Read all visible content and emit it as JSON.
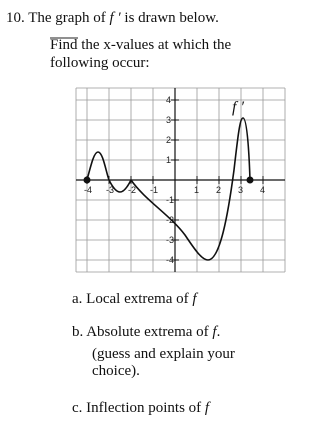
{
  "header": {
    "number": "10.",
    "text": "The graph of",
    "func": "f ′",
    "text_end": "is drawn below."
  },
  "prompt": {
    "line1": "Find the x-values at which the",
    "line2": "following occur:"
  },
  "graph": {
    "curve_label": "f ′",
    "x_labels": [
      -4,
      -3,
      -2,
      -1,
      1,
      2,
      3,
      4
    ],
    "y_labels": [
      4,
      3,
      2,
      1,
      -1,
      -2,
      -3,
      -4
    ]
  },
  "questions": [
    {
      "letter": "a.",
      "text": "Local extrema of",
      "func": "f"
    },
    {
      "letter": "b.",
      "text": "Absolute extrema of",
      "func": "f",
      "end": ".",
      "line2": "(guess and explain your",
      "line3": "choice)."
    },
    {
      "letter": "c.",
      "text": "Inflection points of",
      "func": "f"
    }
  ]
}
